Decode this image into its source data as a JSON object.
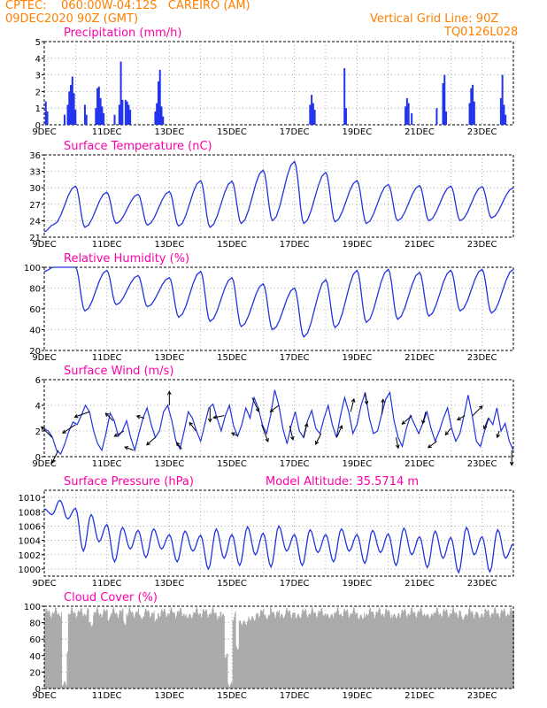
{
  "header": {
    "line1": "CPTEC:    060:00W-04:12S   CAREIRO (AM)",
    "line2": "09DEC2020 90Z (GMT)",
    "right1": "Vertical Grid Line: 90Z",
    "right2": "TQ0126L028"
  },
  "colors": {
    "header": "#ff7f00",
    "title": "#ff00aa",
    "line": "#2233dd",
    "bar": "#2233ee",
    "cloud": "#aaaaaa",
    "arrow": "#000000"
  },
  "chart_data": [
    {
      "id": "precip",
      "type": "bar",
      "title": "Precipitation (mm/h)",
      "ylim": [
        0,
        5
      ],
      "yticks": [
        0,
        1,
        2,
        3,
        4,
        5
      ],
      "xticks": [
        "9DEC",
        "11DEC",
        "13DEC",
        "15DEC",
        "17DEC",
        "19DEC",
        "21DEC",
        "23DEC"
      ],
      "xrange_days": [
        9,
        24
      ],
      "bars": [
        {
          "day": 9.05,
          "v": 1.4
        },
        {
          "day": 9.1,
          "v": 0.8
        },
        {
          "day": 9.65,
          "v": 0.6
        },
        {
          "day": 9.75,
          "v": 1.2
        },
        {
          "day": 9.8,
          "v": 2.0
        },
        {
          "day": 9.85,
          "v": 2.4
        },
        {
          "day": 9.9,
          "v": 2.9
        },
        {
          "day": 9.95,
          "v": 1.9
        },
        {
          "day": 10.0,
          "v": 0.9
        },
        {
          "day": 10.3,
          "v": 1.2
        },
        {
          "day": 10.35,
          "v": 0.6
        },
        {
          "day": 10.65,
          "v": 1.0
        },
        {
          "day": 10.7,
          "v": 2.2
        },
        {
          "day": 10.75,
          "v": 2.3
        },
        {
          "day": 10.8,
          "v": 1.6
        },
        {
          "day": 10.85,
          "v": 1.1
        },
        {
          "day": 10.9,
          "v": 0.7
        },
        {
          "day": 11.25,
          "v": 0.6
        },
        {
          "day": 11.4,
          "v": 1.2
        },
        {
          "day": 11.45,
          "v": 3.8
        },
        {
          "day": 11.5,
          "v": 1.5
        },
        {
          "day": 11.6,
          "v": 1.5
        },
        {
          "day": 11.65,
          "v": 1.4
        },
        {
          "day": 11.7,
          "v": 1.2
        },
        {
          "day": 11.75,
          "v": 0.9
        },
        {
          "day": 12.55,
          "v": 0.8
        },
        {
          "day": 12.6,
          "v": 1.3
        },
        {
          "day": 12.65,
          "v": 2.6
        },
        {
          "day": 12.7,
          "v": 3.3
        },
        {
          "day": 12.75,
          "v": 1.1
        },
        {
          "day": 12.8,
          "v": 0.5
        },
        {
          "day": 17.5,
          "v": 1.2
        },
        {
          "day": 17.55,
          "v": 1.8
        },
        {
          "day": 17.6,
          "v": 1.3
        },
        {
          "day": 17.65,
          "v": 0.9
        },
        {
          "day": 18.6,
          "v": 3.4
        },
        {
          "day": 18.65,
          "v": 1.0
        },
        {
          "day": 20.55,
          "v": 1.1
        },
        {
          "day": 20.6,
          "v": 1.6
        },
        {
          "day": 20.65,
          "v": 1.3
        },
        {
          "day": 20.75,
          "v": 0.7
        },
        {
          "day": 21.55,
          "v": 1.0
        },
        {
          "day": 21.75,
          "v": 2.5
        },
        {
          "day": 21.8,
          "v": 3.0
        },
        {
          "day": 21.85,
          "v": 0.8
        },
        {
          "day": 22.6,
          "v": 1.3
        },
        {
          "day": 22.65,
          "v": 2.2
        },
        {
          "day": 22.7,
          "v": 2.4
        },
        {
          "day": 22.75,
          "v": 1.4
        },
        {
          "day": 23.6,
          "v": 1.6
        },
        {
          "day": 23.65,
          "v": 3.0
        },
        {
          "day": 23.7,
          "v": 1.2
        },
        {
          "day": 23.75,
          "v": 0.6
        }
      ]
    },
    {
      "id": "temp",
      "type": "line",
      "title": "Surface Temperature (nC)",
      "ylim": [
        21,
        36
      ],
      "yticks": [
        21,
        24,
        27,
        30,
        33,
        36
      ],
      "xticks": [
        "9DEC",
        "11DEC",
        "13DEC",
        "15DEC",
        "17DEC",
        "19DEC",
        "21DEC",
        "23DEC"
      ],
      "xrange_days": [
        9,
        24
      ],
      "cycle": {
        "start_day": 9.0,
        "period": 1,
        "phases": [
          0,
          0.35,
          0.65
        ],
        "mins": [
          23.3,
          22.8,
          23.5,
          23.2,
          23.0,
          22.8,
          23.5,
          24.0,
          23.5,
          23.8,
          23.5,
          24.0,
          24.0,
          24.0,
          24.5,
          25.0
        ],
        "maxs": [
          22.0,
          30.3,
          29.2,
          28.8,
          29.3,
          31.3,
          31.2,
          33.2,
          34.8,
          32.8,
          31.3,
          30.6,
          30.4,
          30.3,
          30.2,
          30.0
        ]
      }
    },
    {
      "id": "rh",
      "type": "line",
      "title": "Relative Humidity (%)",
      "ylim": [
        20,
        100
      ],
      "yticks": [
        20,
        40,
        60,
        80,
        100
      ],
      "xticks": [
        "9DEC",
        "11DEC",
        "13DEC",
        "15DEC",
        "17DEC",
        "19DEC",
        "21DEC",
        "23DEC"
      ],
      "xrange_days": [
        9,
        24
      ],
      "cycle": {
        "start_day": 9.0,
        "period": 1,
        "phases": [
          0,
          0.35,
          0.65
        ],
        "mins": [
          100,
          58,
          64,
          62,
          52,
          48,
          43,
          40,
          33,
          42,
          47,
          50,
          53,
          58,
          56,
          62
        ],
        "maxs": [
          96,
          100,
          97,
          92,
          90,
          96,
          90,
          84,
          80,
          88,
          97,
          98,
          95,
          97,
          98,
          98
        ]
      }
    },
    {
      "id": "wind",
      "type": "line",
      "title": "Surface Wind (m/s)",
      "ylim": [
        0,
        6
      ],
      "yticks": [
        0,
        2,
        4,
        6
      ],
      "xticks": [
        "9DEC",
        "11DEC",
        "13DEC",
        "15DEC",
        "17DEC",
        "19DEC",
        "21DEC",
        "23DEC"
      ],
      "xrange_days": [
        9,
        24
      ],
      "series": [
        2.2,
        2.0,
        1.5,
        0.5,
        0.2,
        1.0,
        2.0,
        2.7,
        2.5,
        3.2,
        4.0,
        3.5,
        2.0,
        1.0,
        0.5,
        1.8,
        3.4,
        2.8,
        1.6,
        2.0,
        2.8,
        1.5,
        0.5,
        1.8,
        3.0,
        3.8,
        2.5,
        1.5,
        2.0,
        3.5,
        4.0,
        2.8,
        1.2,
        0.6,
        2.0,
        3.5,
        3.0,
        2.0,
        1.2,
        2.5,
        3.8,
        4.1,
        3.0,
        2.0,
        3.2,
        4.0,
        2.4,
        1.6,
        2.5,
        3.8,
        3.0,
        4.6,
        3.8,
        2.5,
        1.8,
        3.2,
        5.2,
        4.0,
        2.2,
        1.0,
        2.4,
        3.5,
        2.0,
        1.5,
        2.8,
        3.6,
        2.2,
        1.8,
        3.0,
        4.0,
        2.5,
        1.5,
        3.2,
        4.6,
        3.5,
        1.8,
        2.5,
        4.0,
        5.0,
        3.0,
        1.8,
        2.0,
        3.3,
        4.5,
        5.0,
        2.8,
        1.5,
        0.8,
        2.2,
        3.2,
        2.5,
        1.8,
        2.6,
        3.5,
        2.2,
        1.2,
        2.0,
        3.0,
        3.8,
        2.2,
        1.2,
        1.8,
        3.2,
        4.8,
        3.2,
        1.2,
        0.8,
        2.0,
        3.0,
        2.5,
        3.8,
        2.0,
        2.6,
        1.2,
        0.5
      ],
      "arrows": [
        {
          "day": 9.25,
          "dx": -1,
          "dy": -1
        },
        {
          "day": 9.45,
          "dx": -0.6,
          "dy": 1.2
        },
        {
          "day": 10.0,
          "dx": -1.2,
          "dy": 0.8
        },
        {
          "day": 10.45,
          "dx": -1.4,
          "dy": 0.5
        },
        {
          "day": 11.2,
          "dx": -0.7,
          "dy": -0.7
        },
        {
          "day": 11.55,
          "dx": -0.9,
          "dy": 0.5
        },
        {
          "day": 11.85,
          "dx": -0.8,
          "dy": -0.3
        },
        {
          "day": 12.2,
          "dx": -0.7,
          "dy": -0.2
        },
        {
          "day": 12.55,
          "dx": -0.8,
          "dy": 0.7
        },
        {
          "day": 13.0,
          "dx": 0,
          "dy": -1.3
        },
        {
          "day": 13.4,
          "dx": -0.5,
          "dy": -0.6
        },
        {
          "day": 13.85,
          "dx": -0.6,
          "dy": -0.8
        },
        {
          "day": 14.3,
          "dx": 0,
          "dy": 1.3
        },
        {
          "day": 14.75,
          "dx": -1,
          "dy": 0.2
        },
        {
          "day": 15.2,
          "dx": -0.6,
          "dy": -0.3
        },
        {
          "day": 15.65,
          "dx": 0.6,
          "dy": 1.3
        },
        {
          "day": 15.95,
          "dx": 0.6,
          "dy": 1.6
        },
        {
          "day": 16.5,
          "dx": -0.8,
          "dy": 0.6
        },
        {
          "day": 16.85,
          "dx": 0.3,
          "dy": 1.3
        },
        {
          "day": 17.3,
          "dx": 0.3,
          "dy": -1.3
        },
        {
          "day": 17.85,
          "dx": -0.5,
          "dy": 1.0
        },
        {
          "day": 18.35,
          "dx": 0.5,
          "dy": -1.1
        },
        {
          "day": 18.8,
          "dx": 0.3,
          "dy": -1.2
        },
        {
          "day": 19.25,
          "dx": 0.2,
          "dy": 1.1
        },
        {
          "day": 19.8,
          "dx": 0.1,
          "dy": -1.4
        },
        {
          "day": 20.25,
          "dx": 0.2,
          "dy": 1.0
        },
        {
          "day": 20.75,
          "dx": -0.9,
          "dy": 0.8
        },
        {
          "day": 21.2,
          "dx": -0.3,
          "dy": 1.1
        },
        {
          "day": 21.55,
          "dx": -0.8,
          "dy": 0.6
        },
        {
          "day": 22.0,
          "dx": -0.5,
          "dy": 0.6
        },
        {
          "day": 22.45,
          "dx": -0.7,
          "dy": 0.4
        },
        {
          "day": 22.7,
          "dx": 0.9,
          "dy": -0.9
        },
        {
          "day": 23.2,
          "dx": -0.4,
          "dy": 1.0
        },
        {
          "day": 23.55,
          "dx": -0.2,
          "dy": 0.6
        },
        {
          "day": 23.95,
          "dx": 0,
          "dy": 1.4
        }
      ]
    },
    {
      "id": "pres",
      "type": "line",
      "title": "Surface Pressure (hPa)",
      "subtitle": "Model Altitude: 35.5714 m",
      "ylim": [
        999,
        1011
      ],
      "yticks": [
        1000,
        1002,
        1004,
        1006,
        1008,
        1010
      ],
      "xticks": [
        "9DEC",
        "11DEC",
        "13DEC",
        "15DEC",
        "17DEC",
        "19DEC",
        "21DEC",
        "23DEC"
      ],
      "xrange_days": [
        9,
        24
      ],
      "semi": {
        "highs": [
          1008.4,
          1009.6,
          1008.5,
          1007.6,
          1006.2,
          1005.8,
          1005.4,
          1005.6,
          1004.8,
          1005.3,
          1004.7,
          1005.6,
          1004.8,
          1005.9,
          1005.0,
          1006.0,
          1004.8,
          1005.5,
          1004.8,
          1005.6,
          1004.8,
          1005.4,
          1004.9,
          1005.7,
          1004.5,
          1005.3,
          1004.4,
          1005.8,
          1004.5,
          1005.5,
          1003.5
        ],
        "lows": [
          1007.6,
          1007.0,
          1002.5,
          1003.8,
          1001.0,
          1002.8,
          1001.6,
          1002.8,
          1001.0,
          1002.5,
          1000.0,
          1001.5,
          1000.5,
          1002.0,
          1000.3,
          1002.5,
          1000.5,
          1002.3,
          1001.0,
          1002.5,
          1000.8,
          1002.3,
          1000.5,
          1002.0,
          1000.2,
          1001.5,
          999.5,
          1002.0,
          999.6,
          1001.5,
          1000.6
        ]
      }
    },
    {
      "id": "cloud",
      "type": "area",
      "title": "Cloud Cover (%)",
      "ylim": [
        0,
        100
      ],
      "yticks": [
        0,
        20,
        40,
        60,
        80,
        100
      ],
      "xticks": [
        "9DEC",
        "11DEC",
        "13DEC",
        "15DEC",
        "17DEC",
        "19DEC",
        "21DEC",
        "23DEC"
      ],
      "xrange_days": [
        9,
        24
      ],
      "baseline": 92,
      "dips": [
        {
          "from": 9.55,
          "to": 9.7,
          "v": 6
        },
        {
          "from": 9.7,
          "to": 9.75,
          "v": 45
        },
        {
          "from": 10.4,
          "to": 10.55,
          "v": 78
        },
        {
          "from": 11.0,
          "to": 11.1,
          "v": 85
        },
        {
          "from": 11.5,
          "to": 11.6,
          "v": 80
        },
        {
          "from": 12.0,
          "to": 12.15,
          "v": 87
        },
        {
          "from": 12.5,
          "to": 12.6,
          "v": 82
        },
        {
          "from": 13.5,
          "to": 13.7,
          "v": 88
        },
        {
          "from": 14.5,
          "to": 14.6,
          "v": 85
        },
        {
          "from": 14.65,
          "to": 14.75,
          "v": 88
        },
        {
          "from": 14.75,
          "to": 14.85,
          "v": 40
        },
        {
          "from": 14.85,
          "to": 15.0,
          "v": 5
        },
        {
          "from": 15.0,
          "to": 15.05,
          "v": 85
        },
        {
          "from": 15.1,
          "to": 15.2,
          "v": 50
        },
        {
          "from": 15.2,
          "to": 15.5,
          "v": 80
        },
        {
          "from": 15.5,
          "to": 15.75,
          "v": 85
        },
        {
          "from": 16.0,
          "to": 16.2,
          "v": 87
        },
        {
          "from": 16.5,
          "to": 16.7,
          "v": 88
        },
        {
          "from": 17.0,
          "to": 17.2,
          "v": 88
        },
        {
          "from": 18.0,
          "to": 18.2,
          "v": 88
        },
        {
          "from": 19.0,
          "to": 19.2,
          "v": 87
        },
        {
          "from": 20.1,
          "to": 20.3,
          "v": 88
        },
        {
          "from": 21.2,
          "to": 21.4,
          "v": 88
        },
        {
          "from": 22.3,
          "to": 22.45,
          "v": 86
        },
        {
          "from": 22.85,
          "to": 23.0,
          "v": 88
        }
      ]
    }
  ]
}
